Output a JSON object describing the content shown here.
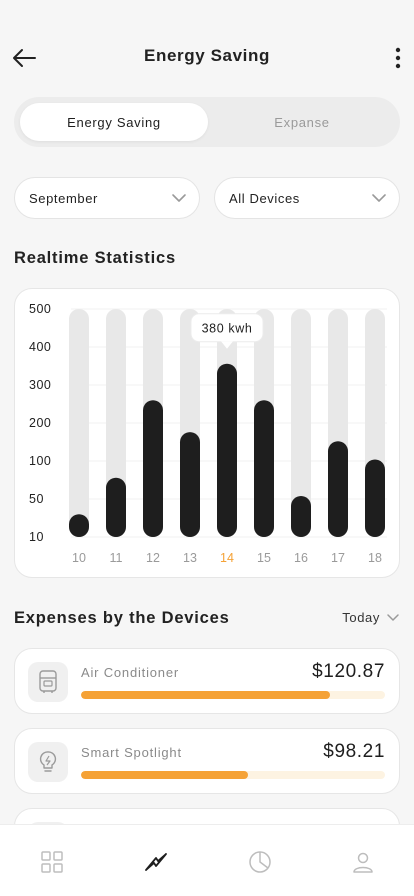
{
  "header": {
    "title": "Energy Saving"
  },
  "segmented": {
    "tabs": [
      "Energy Saving",
      "Expanse"
    ],
    "active": 0
  },
  "filters": {
    "month": "September",
    "devices": "All Devices"
  },
  "stats": {
    "title": "Realtime Statistics",
    "tooltip": "380 kwh"
  },
  "chart_data": {
    "type": "bar",
    "categories": [
      "10",
      "11",
      "12",
      "13",
      "14",
      "15",
      "16",
      "17",
      "18"
    ],
    "y_ticks": [
      "500",
      "400",
      "300",
      "200",
      "100",
      "50",
      "10"
    ],
    "values": [
      50,
      130,
      300,
      230,
      380,
      300,
      90,
      210,
      170
    ],
    "max": 500,
    "highlight_index": 4,
    "highlight_color": "#f5a236",
    "bar_color": "#1e1e1e",
    "track_color": "#e8e8e8"
  },
  "expenses": {
    "title": "Expenses by the Devices",
    "filter": "Today",
    "items": [
      {
        "name": "Air Conditioner",
        "amount": "$120.87",
        "progress": 0.82,
        "icon": "air-conditioner-icon"
      },
      {
        "name": "Smart Spotlight",
        "amount": "$98.21",
        "progress": 0.55,
        "icon": "lightbulb-icon"
      }
    ]
  },
  "tabbar": {
    "items": [
      "grid-icon",
      "energy-icon",
      "pie-chart-icon",
      "profile-icon"
    ],
    "active": 1
  }
}
